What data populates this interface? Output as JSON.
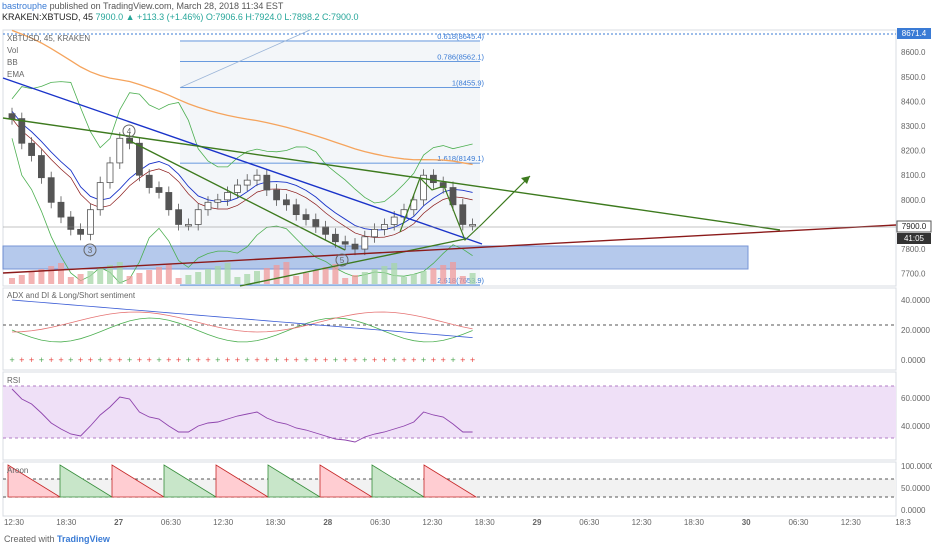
{
  "header": {
    "author": "bastrouphe",
    "published": "published on TradingView.com, March 28, 2018 11:34 EST",
    "symbol_line": "KRAKEN:XBTUSD, 45",
    "ohlc": "7900.0 ▲ +113.3 (+1.46%) O:7906.6 H:7924.0 L:7898.2 C:7900.0"
  },
  "main_pane": {
    "legend": [
      "XBTUSD, 45, KRAKEN",
      "Vol",
      "BB",
      "EMA"
    ],
    "price_ticks": [
      "8600.0",
      "8500.0",
      "8400.0",
      "8300.0",
      "8200.0",
      "8100.0",
      "8000.0",
      "7800.0",
      "7700.0"
    ],
    "price_tick_values": [
      8600,
      8500,
      8400,
      8300,
      8200,
      8100,
      8000,
      7800,
      7700
    ],
    "top_price_badge": "8671.4",
    "last_price_badge": "7900.0",
    "countdown_badge": "41:05",
    "fib_levels": [
      {
        "label": "0.618(8645.4)",
        "value": 8645.4
      },
      {
        "label": "0.786(8562.1)",
        "value": 8562.1
      },
      {
        "label": "1(8455.9)",
        "value": 8455.9
      },
      {
        "label": "1.618(8149.1)",
        "value": 8149.1
      },
      {
        "label": "2.618(7653.9)",
        "value": 7653.9
      }
    ],
    "wave_labels": [
      "3",
      "4",
      "5"
    ]
  },
  "adx_pane": {
    "title": "ADX and DI & Long/Short sentiment",
    "ticks": [
      "40.0000",
      "20.0000",
      "0.0000"
    ]
  },
  "rsi_pane": {
    "title": "RSI",
    "ticks": [
      "60.0000",
      "40.0000"
    ]
  },
  "aroon_pane": {
    "title": "Aroon",
    "ticks": [
      "100.0000",
      "50.0000",
      "0.0000"
    ]
  },
  "time_axis": [
    "12:30",
    "18:30",
    "27",
    "06:30",
    "12:30",
    "18:30",
    "28",
    "06:30",
    "12:30",
    "18:30",
    "29",
    "06:30",
    "12:30",
    "18:30",
    "30",
    "06:30",
    "12:30",
    "18:3"
  ],
  "footer": {
    "created_with": "Created with",
    "brand": "TradingView"
  },
  "colors": {
    "candle": "#555555",
    "ema": "#f5a45d",
    "bb": "#4caf50",
    "blue_trend": "#1a33c9",
    "green_channel": "#3d7a1e",
    "red_trend": "#8b1a1a",
    "support_zone": "#9db8e6",
    "rsi": "#8e44ad",
    "adx_plus": "#4caf50",
    "adx_minus": "#e57373"
  },
  "chart_data": {
    "type": "candlestick",
    "symbol": "XBTUSD",
    "interval": "45",
    "exchange": "KRAKEN",
    "ylim": [
      7650,
      8690
    ],
    "close_series": [
      8330,
      8230,
      8180,
      8090,
      7990,
      7930,
      7880,
      7860,
      7960,
      8070,
      8150,
      8250,
      8230,
      8100,
      8050,
      8030,
      7960,
      7900,
      7900,
      7960,
      7990,
      8000,
      8030,
      8060,
      8080,
      8100,
      8040,
      8000,
      7980,
      7940,
      7920,
      7890,
      7860,
      7830,
      7820,
      7800,
      7850,
      7880,
      7900,
      7930,
      7960,
      8000,
      8100,
      8070,
      8050,
      7980,
      7900,
      7900
    ],
    "fib_retracement": [
      {
        "level": 0.618,
        "price": 8645.4
      },
      {
        "level": 0.786,
        "price": 8562.1
      },
      {
        "level": 1,
        "price": 8455.9
      },
      {
        "level": 1.618,
        "price": 8149.1
      },
      {
        "level": 2.618,
        "price": 7653.9
      }
    ],
    "last_price": 7900.0,
    "high_marker": 8671.4
  }
}
